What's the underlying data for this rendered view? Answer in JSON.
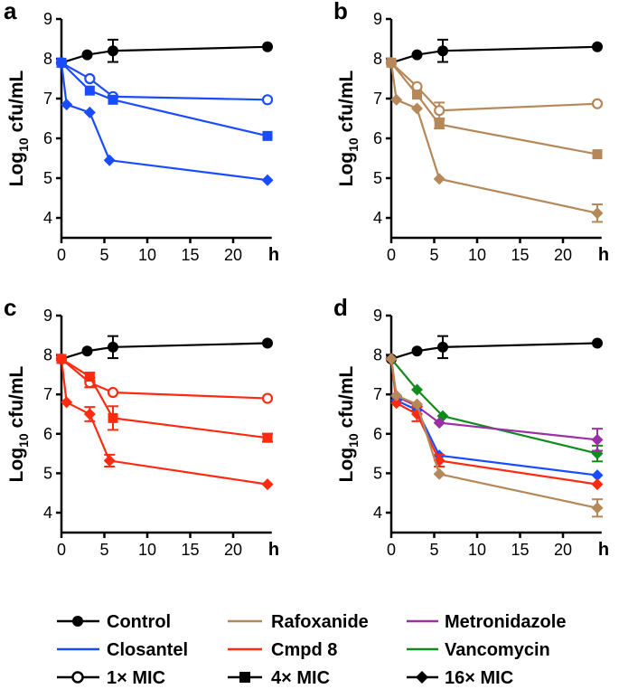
{
  "colors": {
    "control": "#000000",
    "closantel": "#1a4cff",
    "rafoxanide": "#b5885a",
    "cmpd8": "#ff2a10",
    "metronidazole": "#9b2fa4",
    "vancomycin": "#138a1e"
  },
  "legend": {
    "control": "Control",
    "closantel": "Closantel",
    "mic1": "1× MIC",
    "rafoxanide": "Rafoxanide",
    "cmpd8": "Cmpd 8",
    "mic4": "4× MIC",
    "metronidazole": "Metronidazole",
    "vancomycin": "Vancomycin",
    "mic16": "16× MIC"
  },
  "chart_data": [
    {
      "panel": "a",
      "type": "line",
      "xlabel": "h",
      "ylabel_main": "Log",
      "ylabel_sub": "10",
      "ylabel_rest": " cfu/mL",
      "xlim": [
        0,
        25
      ],
      "ylim": [
        3.5,
        9
      ],
      "xticks": [
        "0",
        "5",
        "10",
        "15",
        "20"
      ],
      "yticks": [
        "4",
        "5",
        "6",
        "7",
        "8",
        "9"
      ],
      "series": [
        {
          "name": "Control",
          "color": "control",
          "marker": "circle",
          "x": [
            0,
            3,
            6,
            24
          ],
          "y": [
            7.9,
            8.1,
            8.2,
            8.3
          ],
          "err": [
            0,
            0,
            0.28,
            0
          ]
        },
        {
          "name": "Closantel 1× MIC",
          "color": "closantel",
          "marker": "open-circle",
          "x": [
            0,
            3.3,
            6,
            24
          ],
          "y": [
            7.9,
            7.5,
            7.05,
            6.97
          ],
          "err": [
            0,
            0,
            0,
            0
          ]
        },
        {
          "name": "Closantel 4× MIC",
          "color": "closantel",
          "marker": "square",
          "x": [
            0,
            3.3,
            6,
            24
          ],
          "y": [
            7.9,
            7.2,
            6.97,
            6.06
          ],
          "err": [
            0,
            0,
            0,
            0
          ]
        },
        {
          "name": "Closantel 16× MIC",
          "color": "closantel",
          "marker": "diamond",
          "x": [
            0,
            0.6,
            3.3,
            5.6,
            24
          ],
          "y": [
            7.9,
            6.85,
            6.65,
            5.45,
            4.95
          ],
          "err": [
            0,
            0,
            0,
            0,
            0
          ]
        }
      ]
    },
    {
      "panel": "b",
      "type": "line",
      "xlabel": "h",
      "ylabel_main": "Log",
      "ylabel_sub": "10",
      "ylabel_rest": " cfu/mL",
      "xlim": [
        0,
        25
      ],
      "ylim": [
        3.5,
        9
      ],
      "xticks": [
        "0",
        "5",
        "10",
        "15",
        "20"
      ],
      "yticks": [
        "4",
        "5",
        "6",
        "7",
        "8",
        "9"
      ],
      "series": [
        {
          "name": "Control",
          "color": "control",
          "marker": "circle",
          "x": [
            0,
            3,
            6,
            24
          ],
          "y": [
            7.9,
            8.1,
            8.2,
            8.3
          ],
          "err": [
            0,
            0,
            0.28,
            0
          ]
        },
        {
          "name": "Rafoxanide 1× MIC",
          "color": "rafoxanide",
          "marker": "open-circle",
          "x": [
            0,
            3,
            5.6,
            24
          ],
          "y": [
            7.9,
            7.3,
            6.7,
            6.87
          ],
          "err": [
            0,
            0,
            0.2,
            0
          ]
        },
        {
          "name": "Rafoxanide 4× MIC",
          "color": "rafoxanide",
          "marker": "square",
          "x": [
            0,
            3,
            5.6,
            24
          ],
          "y": [
            7.9,
            7.1,
            6.35,
            5.6
          ],
          "err": [
            0,
            0,
            0.1,
            0
          ]
        },
        {
          "name": "Rafoxanide 16× MIC",
          "color": "rafoxanide",
          "marker": "diamond",
          "x": [
            0,
            0.6,
            3,
            5.6,
            24
          ],
          "y": [
            7.9,
            6.97,
            6.75,
            4.98,
            4.12
          ],
          "err": [
            0,
            0,
            0,
            0,
            0.22
          ]
        }
      ]
    },
    {
      "panel": "c",
      "type": "line",
      "xlabel": "h",
      "ylabel_main": "Log",
      "ylabel_sub": "10",
      "ylabel_rest": " cfu/mL",
      "xlim": [
        0,
        25
      ],
      "ylim": [
        3.5,
        9
      ],
      "xticks": [
        "0",
        "5",
        "10",
        "15",
        "20"
      ],
      "yticks": [
        "4",
        "5",
        "6",
        "7",
        "8",
        "9"
      ],
      "series": [
        {
          "name": "Control",
          "color": "control",
          "marker": "circle",
          "x": [
            0,
            3,
            6,
            24
          ],
          "y": [
            7.9,
            8.1,
            8.2,
            8.3
          ],
          "err": [
            0,
            0,
            0.28,
            0
          ]
        },
        {
          "name": "Cmpd 8 1× MIC",
          "color": "cmpd8",
          "marker": "open-circle",
          "x": [
            0,
            3.3,
            6,
            24
          ],
          "y": [
            7.9,
            7.3,
            7.05,
            6.9
          ],
          "err": [
            0,
            0.12,
            0,
            0
          ]
        },
        {
          "name": "Cmpd 8 4× MIC",
          "color": "cmpd8",
          "marker": "square",
          "x": [
            0,
            3.3,
            6,
            24
          ],
          "y": [
            7.9,
            7.45,
            6.4,
            5.9
          ],
          "err": [
            0,
            0.1,
            0.3,
            0.1
          ]
        },
        {
          "name": "Cmpd 8 16× MIC",
          "color": "cmpd8",
          "marker": "diamond",
          "x": [
            0,
            0.6,
            3.3,
            5.6,
            24
          ],
          "y": [
            7.9,
            6.8,
            6.5,
            5.32,
            4.72
          ],
          "err": [
            0,
            0,
            0.18,
            0.15,
            0
          ]
        }
      ]
    },
    {
      "panel": "d",
      "type": "line",
      "xlabel": "h",
      "ylabel_main": "Log",
      "ylabel_sub": "10",
      "ylabel_rest": " cfu/mL",
      "xlim": [
        0,
        25
      ],
      "ylim": [
        3.5,
        9
      ],
      "xticks": [
        "0",
        "5",
        "10",
        "15",
        "20"
      ],
      "yticks": [
        "4",
        "5",
        "6",
        "7",
        "8",
        "9"
      ],
      "series": [
        {
          "name": "Control",
          "color": "control",
          "marker": "circle",
          "x": [
            0,
            3,
            6,
            24
          ],
          "y": [
            7.9,
            8.1,
            8.2,
            8.3
          ],
          "err": [
            0,
            0,
            0.28,
            0
          ]
        },
        {
          "name": "Vancomycin 16× MIC",
          "color": "vancomycin",
          "marker": "diamond",
          "x": [
            0,
            3,
            6,
            24
          ],
          "y": [
            7.9,
            7.12,
            6.45,
            5.5
          ],
          "err": [
            0,
            0,
            0,
            0.2
          ]
        },
        {
          "name": "Metronidazole 16× MIC",
          "color": "metronidazole",
          "marker": "diamond",
          "x": [
            0,
            0.6,
            3,
            5.6,
            24
          ],
          "y": [
            7.9,
            6.95,
            6.7,
            6.28,
            5.85
          ],
          "err": [
            0,
            0,
            0,
            0,
            0.28
          ]
        },
        {
          "name": "Closantel 16× MIC",
          "color": "closantel",
          "marker": "diamond",
          "x": [
            0,
            0.6,
            3,
            5.6,
            24
          ],
          "y": [
            7.9,
            6.85,
            6.6,
            5.45,
            4.95
          ],
          "err": [
            0,
            0,
            0,
            0,
            0
          ]
        },
        {
          "name": "Cmpd 8 16× MIC",
          "color": "cmpd8",
          "marker": "diamond",
          "x": [
            0,
            0.6,
            3,
            5.6,
            24
          ],
          "y": [
            7.9,
            6.78,
            6.5,
            5.32,
            4.72
          ],
          "err": [
            0,
            0,
            0.18,
            0.15,
            0
          ]
        },
        {
          "name": "Rafoxanide 16× MIC",
          "color": "rafoxanide",
          "marker": "diamond",
          "x": [
            0,
            0.6,
            3,
            5.6,
            24
          ],
          "y": [
            7.9,
            6.97,
            6.75,
            4.98,
            4.12
          ],
          "err": [
            0,
            0,
            0,
            0,
            0.22
          ]
        }
      ]
    }
  ]
}
